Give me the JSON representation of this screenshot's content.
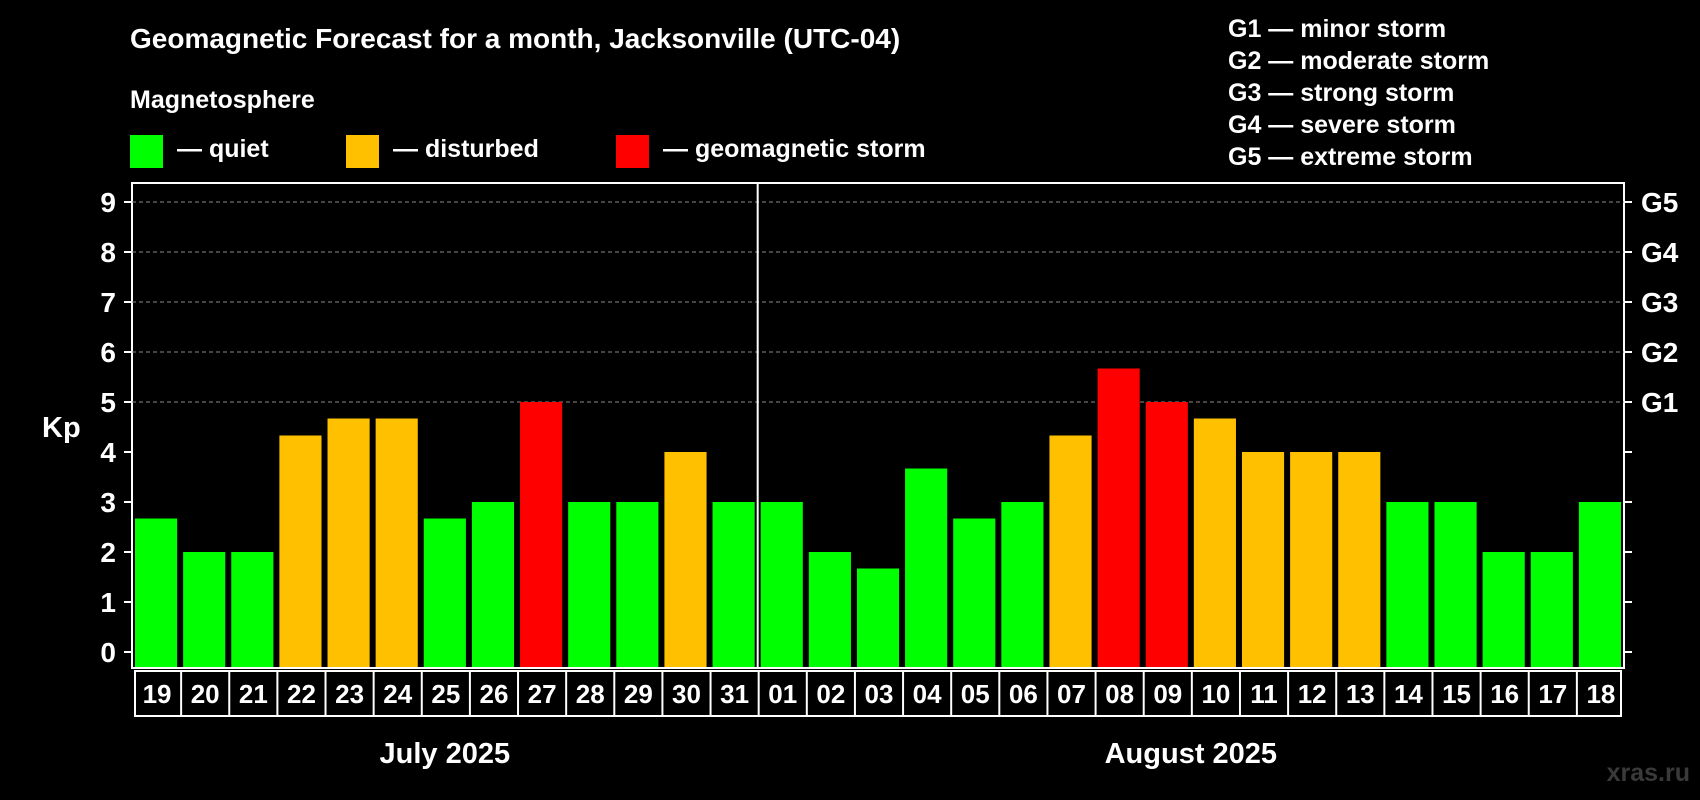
{
  "chart_data": {
    "type": "bar",
    "title": "Geomagnetic Forecast for a month, Jacksonville (UTC-04)",
    "legend": {
      "heading": "Magnetosphere",
      "items": [
        {
          "label": "— quiet",
          "color": "#00ff00"
        },
        {
          "label": "— disturbed",
          "color": "#ffc000"
        },
        {
          "label": "— geomagnetic storm",
          "color": "#ff0000"
        }
      ]
    },
    "storm_scale": [
      "G1 — minor storm",
      "G2 — moderate storm",
      "G3 — strong storm",
      "G4 — severe storm",
      "G5 — extreme storm"
    ],
    "ylabel": "Kp",
    "ylim": [
      0,
      9
    ],
    "yticks": [
      "0",
      "1",
      "2",
      "3",
      "4",
      "5",
      "6",
      "7",
      "8",
      "9"
    ],
    "right_ticks": [
      {
        "value": 5,
        "label": "G1"
      },
      {
        "value": 6,
        "label": "G2"
      },
      {
        "value": 7,
        "label": "G3"
      },
      {
        "value": 8,
        "label": "G4"
      },
      {
        "value": 9,
        "label": "G5"
      }
    ],
    "grid": true,
    "categories": [
      "19",
      "20",
      "21",
      "22",
      "23",
      "24",
      "25",
      "26",
      "27",
      "28",
      "29",
      "30",
      "31",
      "01",
      "02",
      "03",
      "04",
      "05",
      "06",
      "07",
      "08",
      "09",
      "10",
      "11",
      "12",
      "13",
      "14",
      "15",
      "16",
      "17",
      "18"
    ],
    "values": [
      2.67,
      2,
      2,
      4.33,
      4.67,
      4.67,
      2.67,
      3,
      5,
      3,
      3,
      4,
      3,
      3,
      2,
      1.67,
      3.67,
      2.67,
      3,
      4.33,
      5.67,
      5,
      4.67,
      4,
      4,
      4,
      3,
      3,
      2,
      2,
      3
    ],
    "colors": {
      "quiet": "#00ff00",
      "disturbed": "#ffc000",
      "storm": "#ff0000"
    },
    "months": [
      {
        "label": "July 2025",
        "count": 13
      },
      {
        "label": "August 2025",
        "count": 18
      }
    ]
  },
  "watermark": "xras.ru"
}
